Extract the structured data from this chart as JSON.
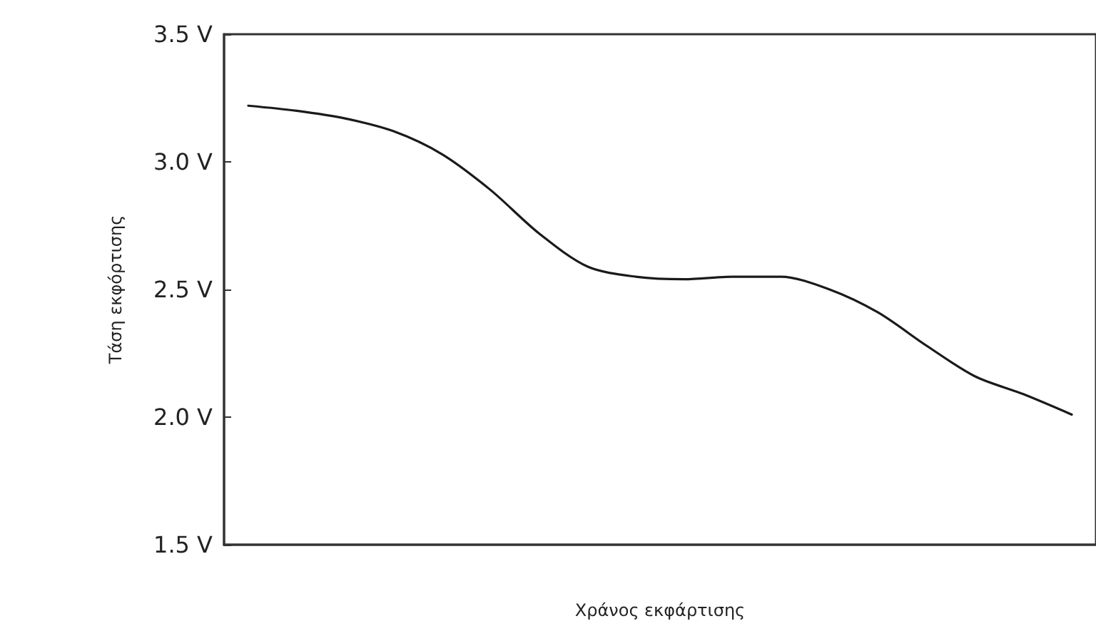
{
  "chart_data": {
    "type": "line",
    "xlabel": "Χράνος εκφάρτισης",
    "ylabel": "Τάση εκφόρτισης",
    "categories": [
      null,
      null,
      null,
      null,
      null,
      null,
      null,
      null,
      null,
      null,
      null,
      null,
      null,
      null,
      null,
      null,
      null,
      null
    ],
    "series": [
      {
        "color": "#1a1a1a",
        "values": [
          3.22,
          3.2,
          3.17,
          3.12,
          3.03,
          2.89,
          2.72,
          2.59,
          2.55,
          2.54,
          2.55,
          2.55,
          2.5,
          2.41,
          2.28,
          2.16,
          2.09,
          2.01
        ]
      }
    ],
    "ylim": [
      1.5,
      3.5
    ],
    "yticks": [
      {
        "value": 1.5,
        "label": "1.5 V"
      },
      {
        "value": 2.0,
        "label": "2.0 V"
      },
      {
        "value": 2.5,
        "label": "2.5 V"
      },
      {
        "value": 3.0,
        "label": "3.0 V"
      },
      {
        "value": 3.5,
        "label": "3.5 V"
      }
    ],
    "tick_labels": "y",
    "grid": false,
    "marker": "none",
    "line_style": "solid"
  }
}
